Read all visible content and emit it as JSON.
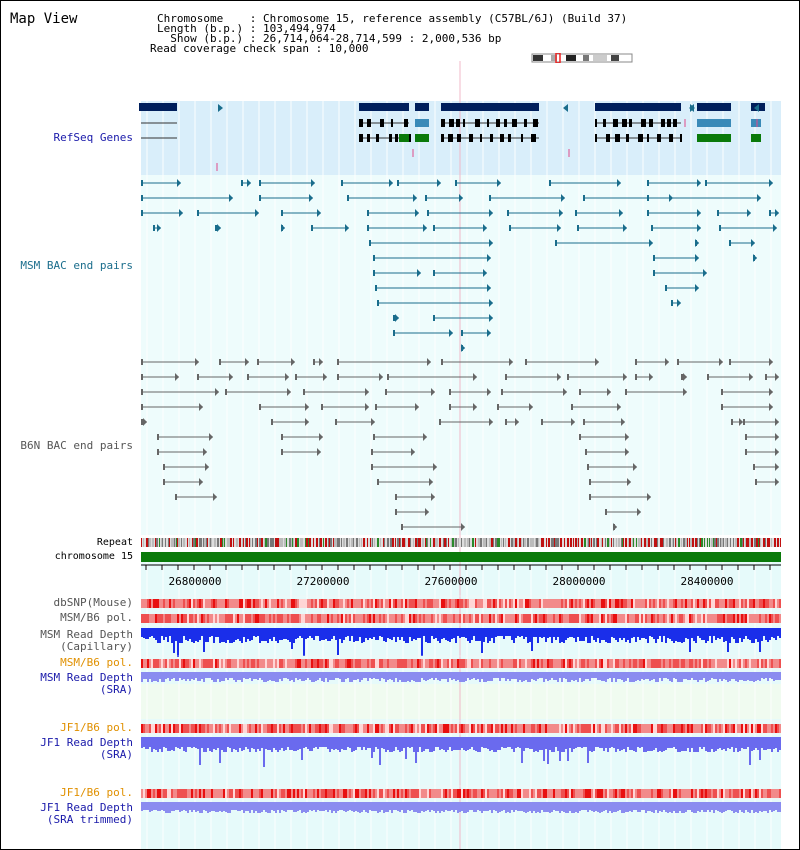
{
  "header": {
    "title": "Map View",
    "info_lines": [
      "Chromosome    : Chromosome 15, reference assembly (C57BL/6J) (Build 37)",
      "Length (b.p.) : 103,494,974",
      "  Show (b.p.) : 26,714,064-28,714,599 : 2,000,536 bp",
      "Read coverage check span : 10,000"
    ]
  },
  "tracks": {
    "refseq": "RefSeq Genes",
    "msm_bac": "MSM BAC end pairs",
    "b6n_bac": "B6N BAC end pairs",
    "repeat": "Repeat",
    "chromosome": "chromosome 15",
    "dbsnp": "dbSNP(Mouse)",
    "msm_b6_pol_1": "MSM/B6 pol.",
    "msm_read_depth_cap_1": "MSM Read Depth",
    "msm_read_depth_cap_2": "(Capillary)",
    "msm_b6_pol_2": "MSM/B6 pol.",
    "msm_read_depth_sra_1": "MSM Read Depth",
    "msm_read_depth_sra_2": "(SRA)",
    "jf1_b6_pol_1": "JF1/B6 pol.",
    "jf1_read_depth_sra_1": "JF1 Read Depth",
    "jf1_read_depth_sra_2": "(SRA)",
    "jf1_b6_pol_2": "JF1/B6 pol.",
    "jf1_read_depth_trim_1": "JF1 Read Depth",
    "jf1_read_depth_trim_2": "(SRA trimmed)"
  },
  "axis": {
    "ticks": [
      "26800000",
      "27200000",
      "27600000",
      "28000000",
      "28400000"
    ]
  },
  "colors": {
    "navy": "#001f5c",
    "teal": "#1a6d8c",
    "gray": "#555555",
    "refseq_bg": "#d9eefa",
    "plot_bg": "#e6fafa",
    "chrom_green": "#0a7a0a",
    "label_blue": "#1a1aaa",
    "label_teal": "#1a6d8c",
    "label_orange": "#e09000",
    "depth_blue": "#1a2eea",
    "depth_light": "#8a8cf0"
  }
}
